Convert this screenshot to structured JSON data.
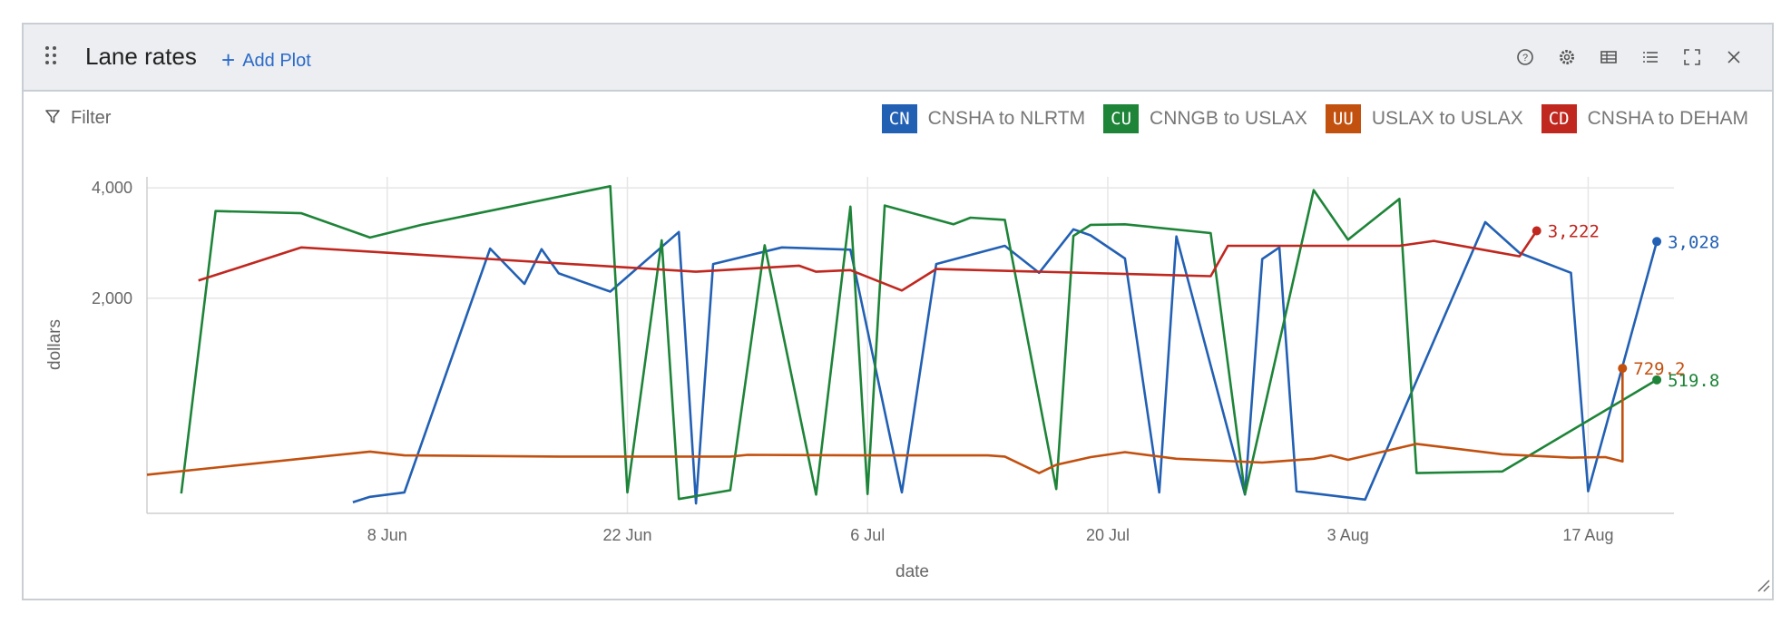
{
  "panel": {
    "title": "Lane rates",
    "add_plot_label": "Add Plot",
    "filter_label": "Filter",
    "tool_icons": [
      "help-icon",
      "settings-icon",
      "table-icon",
      "list-icon",
      "fullscreen-icon",
      "close-icon"
    ]
  },
  "legend": [
    {
      "badge": "CN",
      "label": "CNSHA to NLRTM",
      "color": "#2260b4"
    },
    {
      "badge": "CU",
      "label": "CNNGB to USLAX",
      "color": "#1d8438"
    },
    {
      "badge": "UU",
      "label": "USLAX to USLAX",
      "color": "#c2500f"
    },
    {
      "badge": "CD",
      "label": "CNSHA to DEHAM",
      "color": "#c0271f"
    }
  ],
  "chart_data": {
    "type": "line",
    "xlabel": "date",
    "ylabel": "dollars",
    "x_range": [
      "2023-05-25",
      "2023-08-22"
    ],
    "ylim": [
      -1900,
      4200
    ],
    "y_ticks": [
      2000,
      4000
    ],
    "y_tick_labels": [
      "2,000",
      "4,000"
    ],
    "x_ticks": [
      "2023-06-08",
      "2023-06-22",
      "2023-07-06",
      "2023-07-20",
      "2023-08-03",
      "2023-08-17"
    ],
    "x_tick_labels": [
      "8 Jun",
      "22 Jun",
      "6 Jul",
      "20 Jul",
      "3 Aug",
      "17 Aug"
    ],
    "grid": true,
    "series": [
      {
        "name": "CNSHA to NLRTM",
        "color": "#2260b4",
        "end_label": "3,028",
        "points": [
          [
            "2023-06-06",
            -1700
          ],
          [
            "2023-06-07",
            -1600
          ],
          [
            "2023-06-09",
            -1520
          ],
          [
            "2023-06-14",
            2900
          ],
          [
            "2023-06-16",
            2260
          ],
          [
            "2023-06-17",
            2890
          ],
          [
            "2023-06-18",
            2450
          ],
          [
            "2023-06-21",
            2120
          ],
          [
            "2023-06-25",
            3200
          ],
          [
            "2023-06-26",
            -1720
          ],
          [
            "2023-06-27",
            2620
          ],
          [
            "2023-07-01",
            2920
          ],
          [
            "2023-07-05",
            2880
          ],
          [
            "2023-07-08",
            -1520
          ],
          [
            "2023-07-10",
            2620
          ],
          [
            "2023-07-14",
            2950
          ],
          [
            "2023-07-16",
            2460
          ],
          [
            "2023-07-18",
            3250
          ],
          [
            "2023-07-19",
            3140
          ],
          [
            "2023-07-21",
            2720
          ],
          [
            "2023-07-23",
            -1520
          ],
          [
            "2023-07-24",
            3120
          ],
          [
            "2023-07-28",
            -1560
          ],
          [
            "2023-07-29",
            2710
          ],
          [
            "2023-07-30",
            2920
          ],
          [
            "2023-07-31",
            -1500
          ],
          [
            "2023-08-04",
            -1650
          ],
          [
            "2023-08-11",
            3380
          ],
          [
            "2023-08-13",
            2820
          ],
          [
            "2023-08-16",
            2460
          ],
          [
            "2023-08-17",
            -1500
          ],
          [
            "2023-08-21",
            3028
          ]
        ]
      },
      {
        "name": "CNNGB to USLAX",
        "color": "#1d8438",
        "end_label": "519.8",
        "points": [
          [
            "2023-05-27",
            -1540
          ],
          [
            "2023-05-29",
            3580
          ],
          [
            "2023-06-03",
            3540
          ],
          [
            "2023-06-07",
            3100
          ],
          [
            "2023-06-10",
            3330
          ],
          [
            "2023-06-21",
            4030
          ],
          [
            "2023-06-22",
            -1520
          ],
          [
            "2023-06-24",
            3050
          ],
          [
            "2023-06-25",
            -1640
          ],
          [
            "2023-06-28",
            -1480
          ],
          [
            "2023-06-30",
            2960
          ],
          [
            "2023-07-03",
            -1560
          ],
          [
            "2023-07-05",
            3660
          ],
          [
            "2023-07-06",
            -1550
          ],
          [
            "2023-07-07",
            3680
          ],
          [
            "2023-07-11",
            3340
          ],
          [
            "2023-07-12",
            3460
          ],
          [
            "2023-07-14",
            3420
          ],
          [
            "2023-07-17",
            -1460
          ],
          [
            "2023-07-18",
            3130
          ],
          [
            "2023-07-19",
            3330
          ],
          [
            "2023-07-21",
            3340
          ],
          [
            "2023-07-26",
            3180
          ],
          [
            "2023-07-28",
            -1550
          ],
          [
            "2023-08-01",
            3960
          ],
          [
            "2023-08-03",
            3060
          ],
          [
            "2023-08-06",
            3800
          ],
          [
            "2023-08-07",
            -1170
          ],
          [
            "2023-08-12",
            -1140
          ],
          [
            "2023-08-21",
            519.8
          ]
        ]
      },
      {
        "name": "USLAX to USLAX",
        "color": "#c2500f",
        "end_label": "729.2",
        "points": [
          [
            "2023-05-25",
            -1200
          ],
          [
            "2023-06-07",
            -780
          ],
          [
            "2023-06-09",
            -850
          ],
          [
            "2023-06-13",
            -860
          ],
          [
            "2023-06-18",
            -870
          ],
          [
            "2023-06-28",
            -870
          ],
          [
            "2023-06-29",
            -840
          ],
          [
            "2023-07-06",
            -850
          ],
          [
            "2023-07-13",
            -850
          ],
          [
            "2023-07-14",
            -870
          ],
          [
            "2023-07-16",
            -1170
          ],
          [
            "2023-07-17",
            -1020
          ],
          [
            "2023-07-19",
            -880
          ],
          [
            "2023-07-21",
            -790
          ],
          [
            "2023-07-24",
            -910
          ],
          [
            "2023-07-29",
            -980
          ],
          [
            "2023-08-01",
            -910
          ],
          [
            "2023-08-02",
            -850
          ],
          [
            "2023-08-03",
            -930
          ],
          [
            "2023-08-07",
            -640
          ],
          [
            "2023-08-12",
            -830
          ],
          [
            "2023-08-16",
            -890
          ],
          [
            "2023-08-18",
            -880
          ],
          [
            "2023-08-19",
            -960
          ],
          [
            "2023-08-19",
            729.2
          ]
        ]
      },
      {
        "name": "CNSHA to DEHAM",
        "color": "#c0271f",
        "end_label": "3,222",
        "points": [
          [
            "2023-05-28",
            2320
          ],
          [
            "2023-06-03",
            2920
          ],
          [
            "2023-06-26",
            2480
          ],
          [
            "2023-07-02",
            2590
          ],
          [
            "2023-07-03",
            2480
          ],
          [
            "2023-07-05",
            2510
          ],
          [
            "2023-07-08",
            2140
          ],
          [
            "2023-07-10",
            2530
          ],
          [
            "2023-07-26",
            2400
          ],
          [
            "2023-07-27",
            2950
          ],
          [
            "2023-08-06",
            2950
          ],
          [
            "2023-08-08",
            3040
          ],
          [
            "2023-08-13",
            2760
          ],
          [
            "2023-08-14",
            3222
          ]
        ]
      }
    ]
  }
}
